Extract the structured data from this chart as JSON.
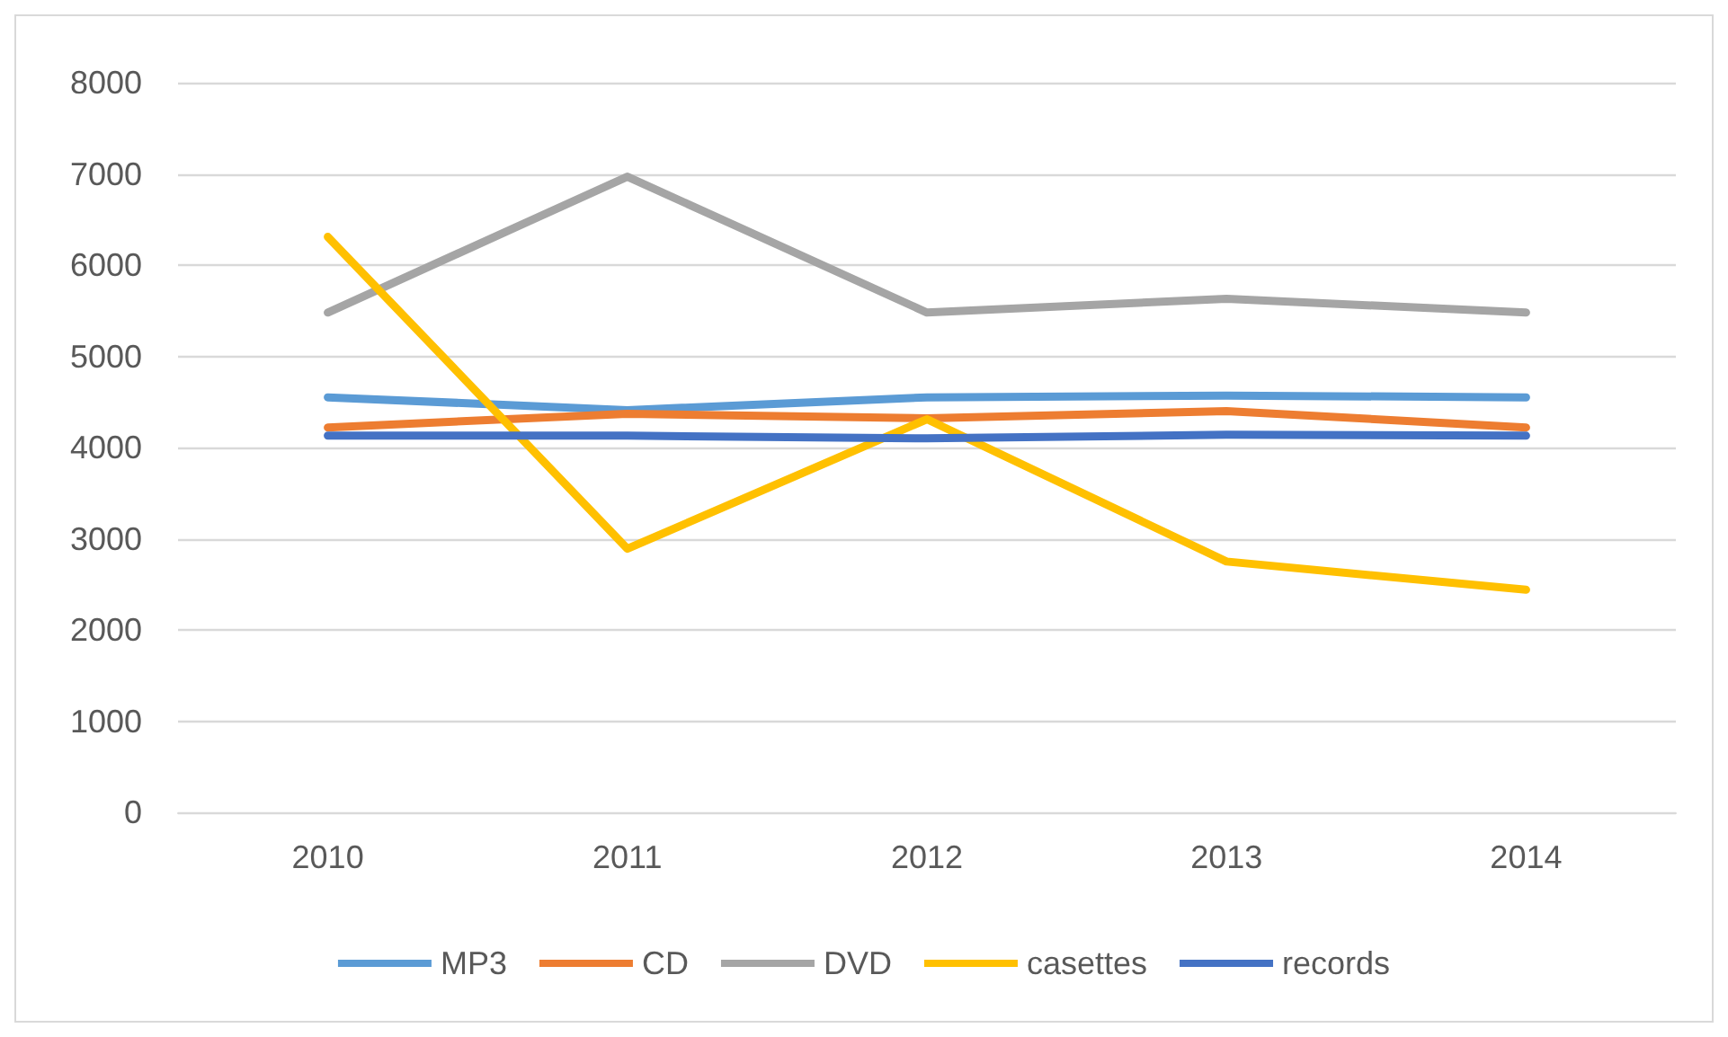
{
  "chart_data": {
    "type": "line",
    "categories": [
      "2010",
      "2011",
      "2012",
      "2013",
      "2014"
    ],
    "series": [
      {
        "name": "MP3",
        "color": "#5b9bd5",
        "values": [
          4550,
          4410,
          4550,
          4570,
          4550
        ]
      },
      {
        "name": "CD",
        "color": "#ed7d31",
        "values": [
          4220,
          4370,
          4320,
          4400,
          4220
        ]
      },
      {
        "name": "DVD",
        "color": "#a5a5a5",
        "values": [
          5480,
          6970,
          5480,
          5630,
          5480
        ]
      },
      {
        "name": "casettes",
        "color": "#ffc000",
        "values": [
          6310,
          2890,
          4310,
          2750,
          2440
        ]
      },
      {
        "name": "records",
        "color": "#4472c4",
        "values": [
          4130,
          4130,
          4100,
          4140,
          4130
        ]
      }
    ],
    "ylim": [
      0,
      8000
    ],
    "yticks": [
      0,
      1000,
      2000,
      3000,
      4000,
      5000,
      6000,
      7000,
      8000
    ],
    "grid": "y",
    "legend": "bottom",
    "marker": "none",
    "line_style": "solid"
  }
}
